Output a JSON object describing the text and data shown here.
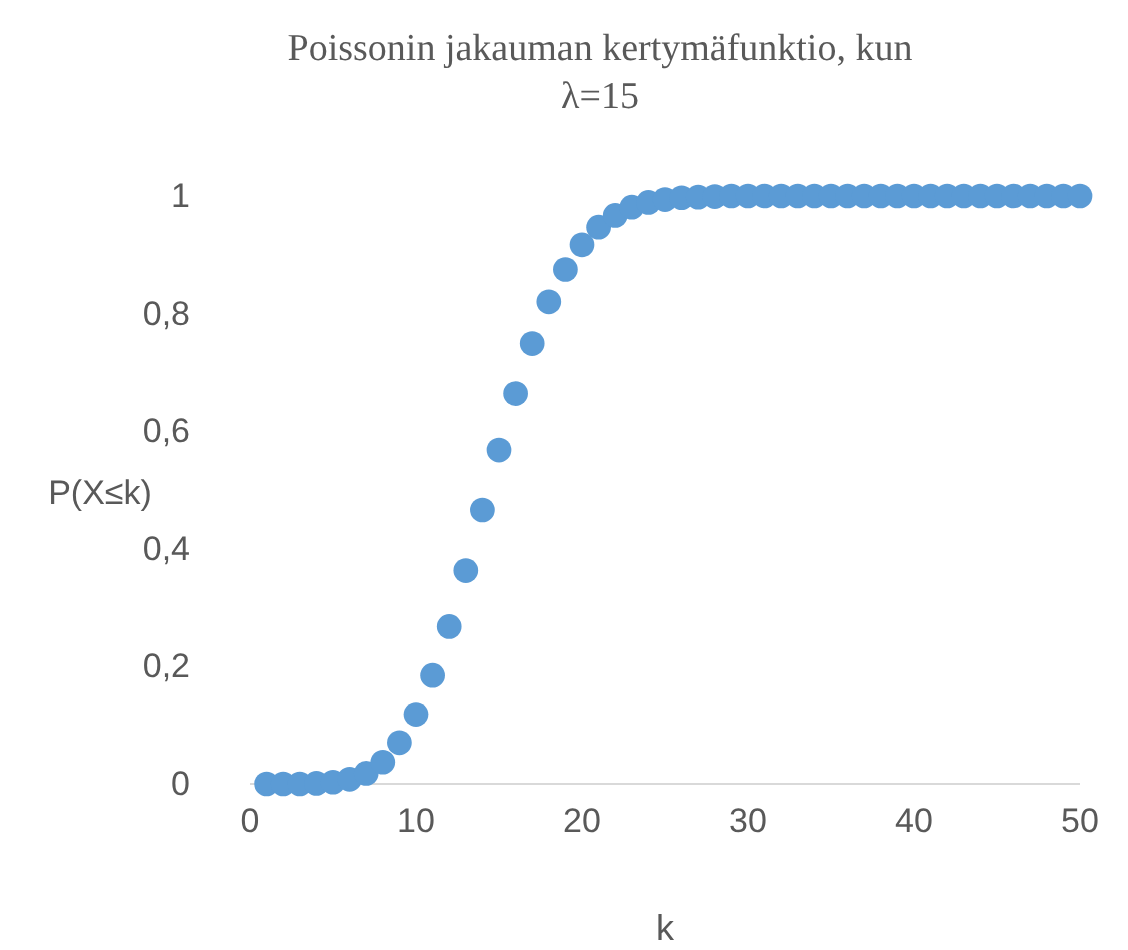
{
  "chart_data": {
    "type": "scatter",
    "title": "Poissonin jakauman kertymäfunktio, kun λ=15",
    "xlabel": "k",
    "ylabel": "P(X≤k)",
    "x": [
      1,
      2,
      3,
      4,
      5,
      6,
      7,
      8,
      9,
      10,
      11,
      12,
      13,
      14,
      15,
      16,
      17,
      18,
      19,
      20,
      21,
      22,
      23,
      24,
      25,
      26,
      27,
      28,
      29,
      30,
      31,
      32,
      33,
      34,
      35,
      36,
      37,
      38,
      39,
      40,
      41,
      42,
      43,
      44,
      45,
      46,
      47,
      48,
      49,
      50
    ],
    "series": [
      {
        "color": "#5b9bd5",
        "values": [
          0.0,
          0.0,
          0.0,
          0.001,
          0.003,
          0.008,
          0.018,
          0.037,
          0.07,
          0.118,
          0.185,
          0.268,
          0.363,
          0.466,
          0.568,
          0.664,
          0.749,
          0.82,
          0.875,
          0.917,
          0.947,
          0.967,
          0.981,
          0.989,
          0.994,
          0.997,
          0.998,
          0.999,
          1,
          1,
          1,
          1,
          1,
          1,
          1,
          1,
          1,
          1,
          1,
          1,
          1,
          1,
          1,
          1,
          1,
          1,
          1,
          1,
          1,
          1
        ]
      }
    ],
    "xlim": [
      0,
      50
    ],
    "xticks": [
      0,
      10,
      20,
      30,
      40,
      50
    ],
    "ylim": [
      0,
      1
    ],
    "yticks": [
      0,
      {
        "value": 0.2,
        "label": "0,2"
      },
      {
        "value": 0.4,
        "label": "0,4"
      },
      {
        "value": 0.6,
        "label": "0,6"
      },
      {
        "value": 0.8,
        "label": "0,8"
      },
      1
    ],
    "marker": "circle",
    "grid": false
  }
}
